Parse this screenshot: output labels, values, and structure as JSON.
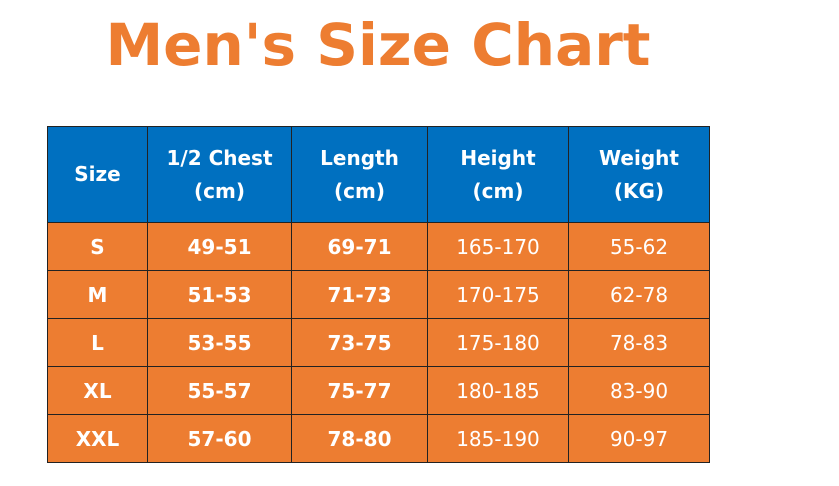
{
  "title": "Men's Size Chart",
  "table": {
    "header": [
      [
        "Size"
      ],
      [
        "1/2 Chest",
        "(cm)"
      ],
      [
        "Length",
        "(cm)"
      ],
      [
        "Height",
        "(cm)"
      ],
      [
        "Weight",
        "(KG)"
      ]
    ],
    "rows": [
      [
        "S",
        "49-51",
        "69-71",
        "165-170",
        "55-62"
      ],
      [
        "M",
        "51-53",
        "71-73",
        "170-175",
        "62-78"
      ],
      [
        "L",
        "53-55",
        "73-75",
        "175-180",
        "78-83"
      ],
      [
        "XL",
        "55-57",
        "75-77",
        "180-185",
        "83-90"
      ],
      [
        "XXL",
        "57-60",
        "78-80",
        "185-190",
        "90-97"
      ]
    ]
  }
}
